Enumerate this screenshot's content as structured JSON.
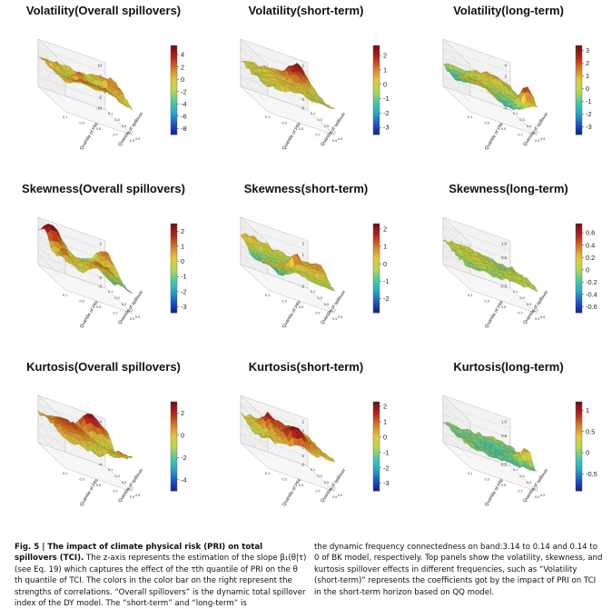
{
  "figure": {
    "caption_head": "Fig. 5 | The impact of climate physical risk (PRI) on total spillovers (TCI).",
    "caption_left_body": "The z-axis represents the estimation of the slope β₁(θ|τ) (see Eq. 19) which captures the effect of the τth quantile of PRI on the θ th quantile of TCI. The colors in the color bar on the right represent the strengths of correlations. “Overall spillovers” is the dynamic total spillover index of the DY model. The “short-term” and “long-term” is",
    "caption_right": "the dynamic frequency connectedness on band:3.14 to 0.14 and 0.14 to 0 of BK model, respectively. Top panels show the volatility, skewness, and kurtosis spillover effects in different frequencies, such as “Volatility (short-term)” represents the coefficients got by the impact of PRI on TCI in the short-term horizon based on QQ model."
  },
  "axis_labels": {
    "x": "Quantile of PRI",
    "y": "Quantile of spillover"
  },
  "quantile_ticks": [
    "0.1",
    "0.2",
    "0.3",
    "0.4",
    "0.5",
    "0.6",
    "0.7",
    "0.8",
    "0.9"
  ],
  "colors": {
    "colorbar": [
      "#0b1a8a",
      "#1d54c9",
      "#23a9c7",
      "#49c9a7",
      "#b9d64a",
      "#e2c83b",
      "#d97a24",
      "#b8241c",
      "#7a0f14"
    ]
  },
  "chart_data": [
    {
      "type": "surface3d",
      "title": "Volatility(Overall spillovers)",
      "xlabel": "Quantile of PRI",
      "ylabel": "Quantile of spillover",
      "colorbar_ticks": [
        4,
        2,
        0,
        -2,
        -4,
        -6,
        -8
      ],
      "zlim": [
        -9,
        5.5
      ],
      "z_ticks": [
        "10",
        "5",
        "0",
        "-5",
        "-10"
      ],
      "seed": 11,
      "peaks": 3,
      "base": 0.2,
      "amp": 1.5
    },
    {
      "type": "surface3d",
      "title": "Volatility(short-term)",
      "xlabel": "Quantile of PRI",
      "ylabel": "Quantile of spillover",
      "colorbar_ticks": [
        2,
        1,
        0,
        -1,
        -2,
        -3
      ],
      "zlim": [
        -3.5,
        2.7
      ],
      "z_ticks": [
        "2",
        "1",
        "0",
        "-1",
        "-2",
        "-3"
      ],
      "seed": 23,
      "peaks": 2,
      "base": 0.1,
      "amp": 0.6
    },
    {
      "type": "surface3d",
      "title": "Volatility(long-term)",
      "xlabel": "Quantile of PRI",
      "ylabel": "Quantile of spillover",
      "colorbar_ticks": [
        3,
        2,
        1,
        0,
        -1,
        -2,
        -3
      ],
      "zlim": [
        -3.6,
        3.4
      ],
      "z_ticks": [
        "4",
        "2",
        "0",
        "-2",
        "-4"
      ],
      "seed": 37,
      "peaks": 3,
      "base": 0.1,
      "amp": 1.3
    },
    {
      "type": "surface3d",
      "title": "Skewness(Overall spillovers)",
      "xlabel": "Quantile of PRI",
      "ylabel": "Quantile of spillover",
      "colorbar_ticks": [
        2,
        1,
        0,
        -1,
        -2,
        -3
      ],
      "zlim": [
        -3.4,
        2.5
      ],
      "z_ticks": [
        "2",
        "1",
        "0",
        "-1",
        "-2",
        "-3"
      ],
      "seed": 41,
      "peaks": 4,
      "base": 0.0,
      "amp": 1.6
    },
    {
      "type": "surface3d",
      "title": "Skewness(short-term)",
      "xlabel": "Quantile of PRI",
      "ylabel": "Quantile of spillover",
      "colorbar_ticks": [
        2,
        1,
        0,
        -1,
        -2
      ],
      "zlim": [
        -2.8,
        2.3
      ],
      "z_ticks": [
        "2",
        "1",
        "0",
        "-1",
        "-2"
      ],
      "seed": 53,
      "peaks": 4,
      "base": 0.0,
      "amp": 1.4
    },
    {
      "type": "surface3d",
      "title": "Skewness(long-term)",
      "xlabel": "Quantile of PRI",
      "ylabel": "Quantile of spillover",
      "colorbar_ticks": [
        0.6,
        0.4,
        0.2,
        0.0,
        -0.2,
        -0.4,
        -0.6
      ],
      "zlim": [
        -0.7,
        0.75
      ],
      "z_ticks": [
        "1.0",
        "0.5",
        "0.0",
        "-0.5"
      ],
      "seed": 67,
      "peaks": 3,
      "base": 0.0,
      "amp": 0.35
    },
    {
      "type": "surface3d",
      "title": "Kurtosis(Overall spillovers)",
      "xlabel": "Quantile of PRI",
      "ylabel": "Quantile of spillover",
      "colorbar_ticks": [
        2,
        0,
        -2,
        -4
      ],
      "zlim": [
        -5,
        3
      ],
      "z_ticks": [
        "4",
        "2",
        "0",
        "-2",
        "-4"
      ],
      "seed": 71,
      "peaks": 3,
      "base": 0.3,
      "amp": 1.5
    },
    {
      "type": "surface3d",
      "title": "Kurtosis(short-term)",
      "xlabel": "Quantile of PRI",
      "ylabel": "Quantile of spillover",
      "colorbar_ticks": [
        2,
        1,
        0,
        -1,
        -2,
        -3
      ],
      "zlim": [
        -3.5,
        2.3
      ],
      "z_ticks": [
        "2",
        "1",
        "0",
        "-1",
        "-2",
        "-3"
      ],
      "seed": 83,
      "peaks": 4,
      "base": 0.3,
      "amp": 1.5
    },
    {
      "type": "surface3d",
      "title": "Kurtosis(long-term)",
      "xlabel": "Quantile of PRI",
      "ylabel": "Quantile of spillover",
      "colorbar_ticks": [
        1.0,
        0.5,
        0.0,
        -0.5
      ],
      "zlim": [
        -0.9,
        1.2
      ],
      "z_ticks": [
        "1.0",
        "0.5",
        "0.0",
        "-0.5"
      ],
      "seed": 97,
      "peaks": 2,
      "base": 0.05,
      "amp": 0.3
    }
  ]
}
